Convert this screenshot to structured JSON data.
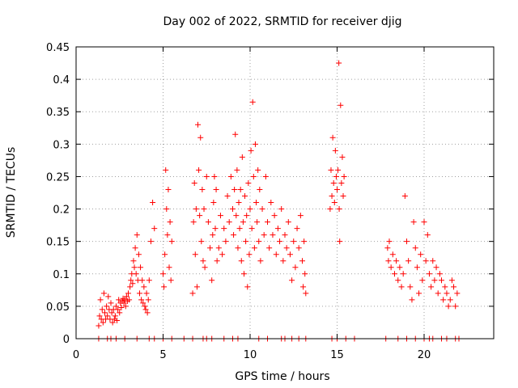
{
  "chart_data": {
    "type": "scatter",
    "title": "Day 002 of 2022, SRMTID for receiver djig",
    "xlabel": "GPS time / hours",
    "ylabel": "SRMTID / TECUs",
    "xlim": [
      0,
      24
    ],
    "ylim": [
      0,
      0.45
    ],
    "xticks": [
      0,
      5,
      10,
      15,
      20
    ],
    "xtick_labels": [
      "0",
      "5",
      "10",
      "15",
      "20"
    ],
    "yticks": [
      0,
      0.05,
      0.1,
      0.15,
      0.2,
      0.25,
      0.3,
      0.35,
      0.4,
      0.45
    ],
    "ytick_labels": [
      "0",
      "0.05",
      "0.1",
      "0.15",
      "0.2",
      "0.25",
      "0.3",
      "0.35",
      "0.4",
      "0.45"
    ],
    "grid": true,
    "marker": "+",
    "color": "#ff0000",
    "series": [
      {
        "name": "SRMTID",
        "points": [
          [
            1.3,
            0.02
          ],
          [
            1.35,
            0.035
          ],
          [
            1.4,
            0.06
          ],
          [
            1.45,
            0.03
          ],
          [
            1.5,
            0.045
          ],
          [
            1.55,
            0.025
          ],
          [
            1.6,
            0.07
          ],
          [
            1.65,
            0.04
          ],
          [
            1.7,
            0.03
          ],
          [
            1.75,
            0.05
          ],
          [
            1.8,
            0.035
          ],
          [
            1.85,
            0.065
          ],
          [
            1.9,
            0.045
          ],
          [
            1.95,
            0.03
          ],
          [
            2.0,
            0.055
          ],
          [
            2.05,
            0.04
          ],
          [
            2.1,
            0.025
          ],
          [
            2.15,
            0.045
          ],
          [
            2.2,
            0.03
          ],
          [
            2.25,
            0.035
          ],
          [
            2.3,
            0.05
          ],
          [
            2.35,
            0.028
          ],
          [
            2.4,
            0.045
          ],
          [
            2.45,
            0.06
          ],
          [
            2.5,
            0.04
          ],
          [
            2.55,
            0.055
          ],
          [
            2.6,
            0.048
          ],
          [
            2.65,
            0.058
          ],
          [
            2.7,
            0.062
          ],
          [
            2.75,
            0.055
          ],
          [
            2.8,
            0.06
          ],
          [
            2.85,
            0.05
          ],
          [
            2.9,
            0.065
          ],
          [
            2.95,
            0.058
          ],
          [
            3.0,
            0.07
          ],
          [
            3.05,
            0.06
          ],
          [
            3.1,
            0.08
          ],
          [
            3.15,
            0.09
          ],
          [
            3.2,
            0.1
          ],
          [
            3.25,
            0.085
          ],
          [
            3.3,
            0.12
          ],
          [
            3.35,
            0.11
          ],
          [
            3.4,
            0.14
          ],
          [
            3.45,
            0.1
          ],
          [
            3.5,
            0.16
          ],
          [
            3.55,
            0.09
          ],
          [
            3.6,
            0.13
          ],
          [
            3.65,
            0.07
          ],
          [
            3.7,
            0.11
          ],
          [
            3.75,
            0.06
          ],
          [
            3.8,
            0.09
          ],
          [
            3.85,
            0.055
          ],
          [
            3.9,
            0.08
          ],
          [
            3.95,
            0.05
          ],
          [
            4.0,
            0.045
          ],
          [
            4.05,
            0.07
          ],
          [
            4.1,
            0.04
          ],
          [
            4.15,
            0.06
          ],
          [
            4.2,
            0.09
          ],
          [
            4.3,
            0.15
          ],
          [
            4.4,
            0.21
          ],
          [
            4.5,
            0.17
          ],
          [
            5.0,
            0.1
          ],
          [
            5.05,
            0.08
          ],
          [
            5.1,
            0.13
          ],
          [
            5.15,
            0.26
          ],
          [
            5.2,
            0.2
          ],
          [
            5.25,
            0.16
          ],
          [
            5.3,
            0.23
          ],
          [
            5.35,
            0.11
          ],
          [
            5.4,
            0.18
          ],
          [
            5.45,
            0.09
          ],
          [
            5.5,
            0.15
          ],
          [
            6.7,
            0.07
          ],
          [
            6.75,
            0.18
          ],
          [
            6.8,
            0.24
          ],
          [
            6.85,
            0.13
          ],
          [
            6.9,
            0.2
          ],
          [
            6.95,
            0.08
          ],
          [
            7.0,
            0.33
          ],
          [
            7.05,
            0.26
          ],
          [
            7.1,
            0.19
          ],
          [
            7.15,
            0.31
          ],
          [
            7.2,
            0.15
          ],
          [
            7.25,
            0.23
          ],
          [
            7.3,
            0.12
          ],
          [
            7.35,
            0.2
          ],
          [
            7.4,
            0.11
          ],
          [
            7.5,
            0.25
          ],
          [
            7.6,
            0.18
          ],
          [
            7.7,
            0.14
          ],
          [
            7.8,
            0.09
          ],
          [
            7.85,
            0.16
          ],
          [
            7.9,
            0.21
          ],
          [
            7.95,
            0.25
          ],
          [
            8.0,
            0.17
          ],
          [
            8.05,
            0.23
          ],
          [
            8.1,
            0.12
          ],
          [
            8.2,
            0.14
          ],
          [
            8.3,
            0.19
          ],
          [
            8.4,
            0.13
          ],
          [
            8.5,
            0.17
          ],
          [
            8.6,
            0.15
          ],
          [
            8.7,
            0.22
          ],
          [
            8.8,
            0.18
          ],
          [
            8.9,
            0.25
          ],
          [
            9.0,
            0.2
          ],
          [
            9.05,
            0.16
          ],
          [
            9.1,
            0.23
          ],
          [
            9.15,
            0.315
          ],
          [
            9.2,
            0.19
          ],
          [
            9.25,
            0.26
          ],
          [
            9.3,
            0.14
          ],
          [
            9.35,
            0.21
          ],
          [
            9.4,
            0.17
          ],
          [
            9.45,
            0.23
          ],
          [
            9.5,
            0.12
          ],
          [
            9.55,
            0.28
          ],
          [
            9.6,
            0.18
          ],
          [
            9.65,
            0.1
          ],
          [
            9.7,
            0.22
          ],
          [
            9.75,
            0.15
          ],
          [
            9.8,
            0.19
          ],
          [
            9.85,
            0.08
          ],
          [
            9.9,
            0.24
          ],
          [
            9.95,
            0.13
          ],
          [
            10.0,
            0.2
          ],
          [
            10.05,
            0.29
          ],
          [
            10.1,
            0.17
          ],
          [
            10.15,
            0.365
          ],
          [
            10.2,
            0.25
          ],
          [
            10.25,
            0.14
          ],
          [
            10.3,
            0.3
          ],
          [
            10.35,
            0.21
          ],
          [
            10.4,
            0.18
          ],
          [
            10.45,
            0.26
          ],
          [
            10.5,
            0.15
          ],
          [
            10.55,
            0.23
          ],
          [
            10.6,
            0.12
          ],
          [
            10.7,
            0.2
          ],
          [
            10.8,
            0.16
          ],
          [
            10.9,
            0.25
          ],
          [
            11.0,
            0.18
          ],
          [
            11.1,
            0.14
          ],
          [
            11.2,
            0.21
          ],
          [
            11.3,
            0.16
          ],
          [
            11.4,
            0.19
          ],
          [
            11.5,
            0.13
          ],
          [
            11.6,
            0.17
          ],
          [
            11.7,
            0.15
          ],
          [
            11.8,
            0.2
          ],
          [
            11.9,
            0.12
          ],
          [
            12.0,
            0.16
          ],
          [
            12.1,
            0.14
          ],
          [
            12.2,
            0.18
          ],
          [
            12.3,
            0.13
          ],
          [
            12.4,
            0.09
          ],
          [
            12.5,
            0.15
          ],
          [
            12.6,
            0.11
          ],
          [
            12.7,
            0.17
          ],
          [
            12.8,
            0.14
          ],
          [
            12.9,
            0.19
          ],
          [
            13.0,
            0.12
          ],
          [
            13.05,
            0.08
          ],
          [
            13.1,
            0.15
          ],
          [
            13.15,
            0.1
          ],
          [
            13.2,
            0.07
          ],
          [
            14.6,
            0.2
          ],
          [
            14.65,
            0.26
          ],
          [
            14.7,
            0.22
          ],
          [
            14.75,
            0.31
          ],
          [
            14.8,
            0.24
          ],
          [
            14.85,
            0.21
          ],
          [
            14.9,
            0.29
          ],
          [
            14.95,
            0.25
          ],
          [
            15.0,
            0.23
          ],
          [
            15.05,
            0.26
          ],
          [
            15.1,
            0.425
          ],
          [
            15.12,
            0.2
          ],
          [
            15.15,
            0.15
          ],
          [
            15.2,
            0.36
          ],
          [
            15.25,
            0.24
          ],
          [
            15.3,
            0.28
          ],
          [
            15.35,
            0.22
          ],
          [
            15.4,
            0.25
          ],
          [
            17.9,
            0.14
          ],
          [
            17.95,
            0.12
          ],
          [
            18.0,
            0.15
          ],
          [
            18.1,
            0.11
          ],
          [
            18.2,
            0.13
          ],
          [
            18.3,
            0.1
          ],
          [
            18.4,
            0.12
          ],
          [
            18.5,
            0.09
          ],
          [
            18.6,
            0.11
          ],
          [
            18.7,
            0.08
          ],
          [
            18.8,
            0.1
          ],
          [
            18.9,
            0.22
          ],
          [
            19.0,
            0.15
          ],
          [
            19.1,
            0.12
          ],
          [
            19.2,
            0.08
          ],
          [
            19.3,
            0.06
          ],
          [
            19.4,
            0.18
          ],
          [
            19.5,
            0.14
          ],
          [
            19.6,
            0.11
          ],
          [
            19.7,
            0.07
          ],
          [
            19.8,
            0.13
          ],
          [
            19.9,
            0.09
          ],
          [
            20.0,
            0.18
          ],
          [
            20.1,
            0.12
          ],
          [
            20.2,
            0.16
          ],
          [
            20.3,
            0.1
          ],
          [
            20.4,
            0.08
          ],
          [
            20.5,
            0.12
          ],
          [
            20.6,
            0.09
          ],
          [
            20.7,
            0.11
          ],
          [
            20.8,
            0.07
          ],
          [
            20.9,
            0.1
          ],
          [
            21.0,
            0.09
          ],
          [
            21.1,
            0.06
          ],
          [
            21.2,
            0.08
          ],
          [
            21.3,
            0.07
          ],
          [
            21.4,
            0.05
          ],
          [
            21.5,
            0.06
          ],
          [
            21.6,
            0.09
          ],
          [
            21.7,
            0.08
          ],
          [
            21.8,
            0.05
          ],
          [
            21.9,
            0.07
          ],
          [
            1.3,
            0.0
          ],
          [
            1.8,
            0.0
          ],
          [
            2.0,
            0.0
          ],
          [
            2.3,
            0.0
          ],
          [
            2.8,
            0.0
          ],
          [
            3.5,
            0.0
          ],
          [
            4.2,
            0.0
          ],
          [
            4.5,
            0.0
          ],
          [
            5.0,
            0.0
          ],
          [
            5.5,
            0.0
          ],
          [
            6.2,
            0.0
          ],
          [
            6.7,
            0.0
          ],
          [
            7.3,
            0.0
          ],
          [
            7.5,
            0.0
          ],
          [
            7.8,
            0.0
          ],
          [
            8.5,
            0.0
          ],
          [
            9.0,
            0.0
          ],
          [
            9.3,
            0.0
          ],
          [
            10.5,
            0.0
          ],
          [
            11.0,
            0.0
          ],
          [
            11.8,
            0.0
          ],
          [
            12.0,
            0.0
          ],
          [
            12.4,
            0.0
          ],
          [
            12.8,
            0.0
          ],
          [
            13.2,
            0.0
          ],
          [
            14.7,
            0.0
          ],
          [
            15.0,
            0.0
          ],
          [
            15.5,
            0.0
          ],
          [
            16.0,
            0.0
          ],
          [
            17.8,
            0.0
          ],
          [
            18.5,
            0.0
          ],
          [
            19.0,
            0.0
          ],
          [
            19.5,
            0.0
          ],
          [
            20.0,
            0.0
          ],
          [
            20.3,
            0.0
          ],
          [
            20.5,
            0.0
          ],
          [
            21.0,
            0.0
          ],
          [
            21.3,
            0.0
          ],
          [
            21.8,
            0.0
          ],
          [
            22.0,
            0.0
          ]
        ]
      }
    ]
  }
}
